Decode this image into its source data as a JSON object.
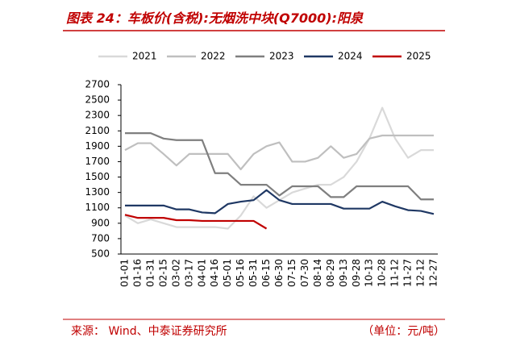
{
  "chart_data": {
    "type": "line",
    "title": "图表 24：车板价(含税):无烟洗中块(Q7000):阳泉",
    "source": "来源：   Wind、中泰证券研究所",
    "unit": "（单位：元/吨）",
    "categories": [
      "01-01",
      "01-16",
      "01-31",
      "02-15",
      "03-02",
      "03-17",
      "04-01",
      "04-16",
      "05-01",
      "05-16",
      "05-31",
      "06-15",
      "06-30",
      "07-15",
      "07-30",
      "08-14",
      "08-29",
      "09-13",
      "09-28",
      "10-13",
      "10-28",
      "11-12",
      "11-27",
      "12-12",
      "12-27"
    ],
    "series": [
      {
        "name": "2021",
        "color": "#d9d9d9",
        "values": [
          1000,
          900,
          950,
          900,
          850,
          850,
          850,
          850,
          830,
          1000,
          1250,
          1100,
          1200,
          1300,
          1350,
          1400,
          1400,
          1500,
          1700,
          2000,
          2400,
          2000,
          1750,
          1850,
          1850
        ]
      },
      {
        "name": "2022",
        "color": "#bfbfbf",
        "values": [
          1850,
          1940,
          1940,
          1800,
          1650,
          1800,
          1800,
          1800,
          1800,
          1600,
          1800,
          1900,
          1950,
          1700,
          1700,
          1750,
          1900,
          1750,
          1800,
          2000,
          2040,
          2040,
          2040,
          2040,
          2040
        ]
      },
      {
        "name": "2023",
        "color": "#7f7f7f",
        "values": [
          2070,
          2070,
          2070,
          2000,
          1980,
          1980,
          1980,
          1550,
          1550,
          1400,
          1400,
          1400,
          1260,
          1380,
          1380,
          1380,
          1240,
          1240,
          1380,
          1380,
          1380,
          1380,
          1380,
          1210,
          1210
        ]
      },
      {
        "name": "2024",
        "color": "#1f3864",
        "values": [
          1130,
          1130,
          1130,
          1130,
          1080,
          1080,
          1040,
          1030,
          1150,
          1180,
          1200,
          1330,
          1200,
          1150,
          1150,
          1150,
          1150,
          1090,
          1090,
          1090,
          1180,
          1120,
          1070,
          1060,
          1020
        ]
      },
      {
        "name": "2025",
        "color": "#c00000",
        "values": [
          1010,
          970,
          970,
          970,
          940,
          940,
          930,
          930,
          930,
          930,
          930,
          830,
          null,
          null,
          null,
          null,
          null,
          null,
          null,
          null,
          null,
          null,
          null,
          null,
          null
        ]
      }
    ],
    "ylim": [
      500,
      2700
    ],
    "yticks": [
      500,
      700,
      900,
      1100,
      1300,
      1500,
      1700,
      1900,
      2100,
      2300,
      2500,
      2700
    ]
  }
}
